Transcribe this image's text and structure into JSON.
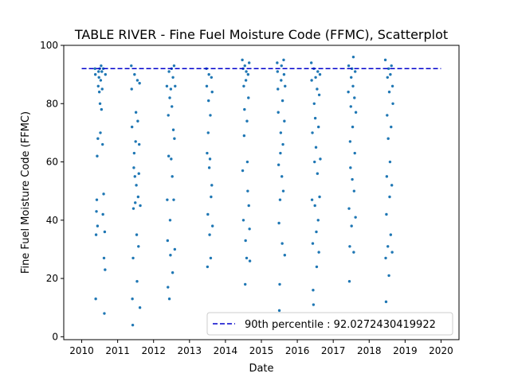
{
  "chart_data": {
    "type": "scatter",
    "title": "TABLE RIVER - Fine Fuel Moisture Code (FFMC), Scatterplot",
    "xlabel": "Date",
    "ylabel": "Fine Fuel Moisture Code (FFMC)",
    "xlim": [
      2009.5,
      2020.5
    ],
    "ylim": [
      -1,
      100
    ],
    "x_ticks": [
      2010,
      2011,
      2012,
      2013,
      2014,
      2015,
      2016,
      2017,
      2018,
      2019,
      2020
    ],
    "y_ticks": [
      0,
      20,
      40,
      60,
      80,
      100
    ],
    "grid": false,
    "legend_position": "lower-right",
    "point_color": "#1f77b4",
    "reference_line": {
      "label": "90th percentile : 92.0272430419922",
      "value": 92.0272430419922,
      "x_range": [
        2010,
        2020
      ],
      "color": "#0000cc",
      "style": "dashed"
    },
    "series": [
      {
        "points": [
          [
            2010.37,
            92
          ],
          [
            2010.38,
            90
          ],
          [
            2010.39,
            13
          ],
          [
            2010.4,
            35
          ],
          [
            2010.41,
            43
          ],
          [
            2010.42,
            47
          ],
          [
            2010.43,
            62
          ],
          [
            2010.44,
            38
          ],
          [
            2010.45,
            68
          ],
          [
            2010.46,
            86
          ],
          [
            2010.47,
            91
          ],
          [
            2010.48,
            89
          ],
          [
            2010.49,
            84
          ],
          [
            2010.5,
            92
          ],
          [
            2010.51,
            80
          ],
          [
            2010.52,
            70
          ],
          [
            2010.53,
            88
          ],
          [
            2010.54,
            93
          ],
          [
            2010.55,
            78
          ],
          [
            2010.56,
            91
          ],
          [
            2010.57,
            85
          ],
          [
            2010.58,
            66
          ],
          [
            2010.59,
            42
          ],
          [
            2010.6,
            92
          ],
          [
            2010.61,
            49
          ],
          [
            2010.62,
            27
          ],
          [
            2010.63,
            8
          ],
          [
            2010.64,
            36
          ],
          [
            2010.65,
            23
          ],
          [
            2010.66,
            90
          ],
          [
            2011.38,
            93
          ],
          [
            2011.39,
            85
          ],
          [
            2011.4,
            72
          ],
          [
            2011.41,
            13
          ],
          [
            2011.42,
            4
          ],
          [
            2011.43,
            27
          ],
          [
            2011.44,
            44
          ],
          [
            2011.45,
            58
          ],
          [
            2011.46,
            63
          ],
          [
            2011.47,
            90
          ],
          [
            2011.48,
            55
          ],
          [
            2011.49,
            46
          ],
          [
            2011.5,
            67
          ],
          [
            2011.51,
            77
          ],
          [
            2011.52,
            52
          ],
          [
            2011.53,
            35
          ],
          [
            2011.54,
            19
          ],
          [
            2011.55,
            88
          ],
          [
            2011.56,
            74
          ],
          [
            2011.57,
            48
          ],
          [
            2011.58,
            31
          ],
          [
            2011.59,
            56
          ],
          [
            2011.6,
            66
          ],
          [
            2011.61,
            87
          ],
          [
            2011.62,
            10
          ],
          [
            2011.63,
            45
          ],
          [
            2012.37,
            86
          ],
          [
            2012.38,
            47
          ],
          [
            2012.39,
            33
          ],
          [
            2012.4,
            17
          ],
          [
            2012.41,
            76
          ],
          [
            2012.42,
            62
          ],
          [
            2012.43,
            91
          ],
          [
            2012.44,
            13
          ],
          [
            2012.45,
            82
          ],
          [
            2012.46,
            40
          ],
          [
            2012.47,
            28
          ],
          [
            2012.48,
            85
          ],
          [
            2012.49,
            61
          ],
          [
            2012.5,
            92
          ],
          [
            2012.51,
            79
          ],
          [
            2012.52,
            55
          ],
          [
            2012.53,
            22
          ],
          [
            2012.54,
            89
          ],
          [
            2012.55,
            71
          ],
          [
            2012.56,
            47
          ],
          [
            2012.57,
            93
          ],
          [
            2012.58,
            68
          ],
          [
            2012.59,
            30
          ],
          [
            2012.6,
            86
          ],
          [
            2013.47,
            92
          ],
          [
            2013.48,
            86
          ],
          [
            2013.49,
            63
          ],
          [
            2013.5,
            24
          ],
          [
            2013.51,
            42
          ],
          [
            2013.52,
            70
          ],
          [
            2013.53,
            81
          ],
          [
            2013.54,
            90
          ],
          [
            2013.55,
            58
          ],
          [
            2013.56,
            35
          ],
          [
            2013.57,
            61
          ],
          [
            2013.58,
            76
          ],
          [
            2013.59,
            27
          ],
          [
            2013.6,
            48
          ],
          [
            2013.61,
            89
          ],
          [
            2013.62,
            52
          ],
          [
            2013.63,
            84
          ],
          [
            2013.64,
            38
          ],
          [
            2014.47,
            95
          ],
          [
            2014.48,
            57
          ],
          [
            2014.49,
            92
          ],
          [
            2014.5,
            40
          ],
          [
            2014.51,
            86
          ],
          [
            2014.52,
            69
          ],
          [
            2014.53,
            78
          ],
          [
            2014.54,
            93
          ],
          [
            2014.55,
            18
          ],
          [
            2014.56,
            33
          ],
          [
            2014.57,
            88
          ],
          [
            2014.58,
            91
          ],
          [
            2014.59,
            27
          ],
          [
            2014.6,
            74
          ],
          [
            2014.61,
            60
          ],
          [
            2014.62,
            50
          ],
          [
            2014.63,
            90
          ],
          [
            2014.64,
            82
          ],
          [
            2014.65,
            45
          ],
          [
            2014.66,
            94
          ],
          [
            2014.67,
            37
          ],
          [
            2014.68,
            26
          ],
          [
            2015.44,
            94
          ],
          [
            2015.45,
            91
          ],
          [
            2015.46,
            85
          ],
          [
            2015.47,
            77
          ],
          [
            2015.48,
            59
          ],
          [
            2015.49,
            39
          ],
          [
            2015.5,
            9
          ],
          [
            2015.51,
            18
          ],
          [
            2015.52,
            47
          ],
          [
            2015.53,
            63
          ],
          [
            2015.54,
            70
          ],
          [
            2015.55,
            88
          ],
          [
            2015.56,
            93
          ],
          [
            2015.57,
            55
          ],
          [
            2015.58,
            32
          ],
          [
            2015.59,
            81
          ],
          [
            2015.6,
            66
          ],
          [
            2015.61,
            50
          ],
          [
            2015.62,
            95
          ],
          [
            2015.63,
            90
          ],
          [
            2015.64,
            74
          ],
          [
            2015.65,
            28
          ],
          [
            2015.66,
            86
          ],
          [
            2016.39,
            94
          ],
          [
            2016.4,
            88
          ],
          [
            2016.41,
            47
          ],
          [
            2016.42,
            70
          ],
          [
            2016.43,
            32
          ],
          [
            2016.44,
            16
          ],
          [
            2016.45,
            11
          ],
          [
            2016.46,
            92
          ],
          [
            2016.47,
            80
          ],
          [
            2016.48,
            60
          ],
          [
            2016.49,
            45
          ],
          [
            2016.5,
            75
          ],
          [
            2016.51,
            89
          ],
          [
            2016.52,
            65
          ],
          [
            2016.53,
            36
          ],
          [
            2016.54,
            24
          ],
          [
            2016.55,
            85
          ],
          [
            2016.56,
            56
          ],
          [
            2016.57,
            91
          ],
          [
            2016.58,
            40
          ],
          [
            2016.59,
            72
          ],
          [
            2016.6,
            29
          ],
          [
            2016.61,
            83
          ],
          [
            2016.62,
            48
          ],
          [
            2016.63,
            90
          ],
          [
            2016.64,
            61
          ],
          [
            2017.42,
            84
          ],
          [
            2017.43,
            93
          ],
          [
            2017.44,
            44
          ],
          [
            2017.45,
            19
          ],
          [
            2017.46,
            31
          ],
          [
            2017.47,
            67
          ],
          [
            2017.48,
            58
          ],
          [
            2017.49,
            79
          ],
          [
            2017.5,
            89
          ],
          [
            2017.51,
            38
          ],
          [
            2017.52,
            92
          ],
          [
            2017.53,
            54
          ],
          [
            2017.54,
            72
          ],
          [
            2017.55,
            86
          ],
          [
            2017.56,
            96
          ],
          [
            2017.57,
            29
          ],
          [
            2017.58,
            50
          ],
          [
            2017.59,
            82
          ],
          [
            2017.6,
            63
          ],
          [
            2017.61,
            91
          ],
          [
            2017.62,
            41
          ],
          [
            2017.63,
            77
          ],
          [
            2018.45,
            95
          ],
          [
            2018.46,
            27
          ],
          [
            2018.47,
            12
          ],
          [
            2018.48,
            42
          ],
          [
            2018.49,
            55
          ],
          [
            2018.5,
            76
          ],
          [
            2018.51,
            89
          ],
          [
            2018.52,
            31
          ],
          [
            2018.53,
            68
          ],
          [
            2018.54,
            92
          ],
          [
            2018.55,
            21
          ],
          [
            2018.56,
            84
          ],
          [
            2018.57,
            48
          ],
          [
            2018.58,
            60
          ],
          [
            2018.59,
            90
          ],
          [
            2018.6,
            35
          ],
          [
            2018.61,
            72
          ],
          [
            2018.62,
            93
          ],
          [
            2018.63,
            52
          ],
          [
            2018.64,
            29
          ],
          [
            2018.65,
            86
          ],
          [
            2018.66,
            80
          ]
        ]
      }
    ]
  }
}
